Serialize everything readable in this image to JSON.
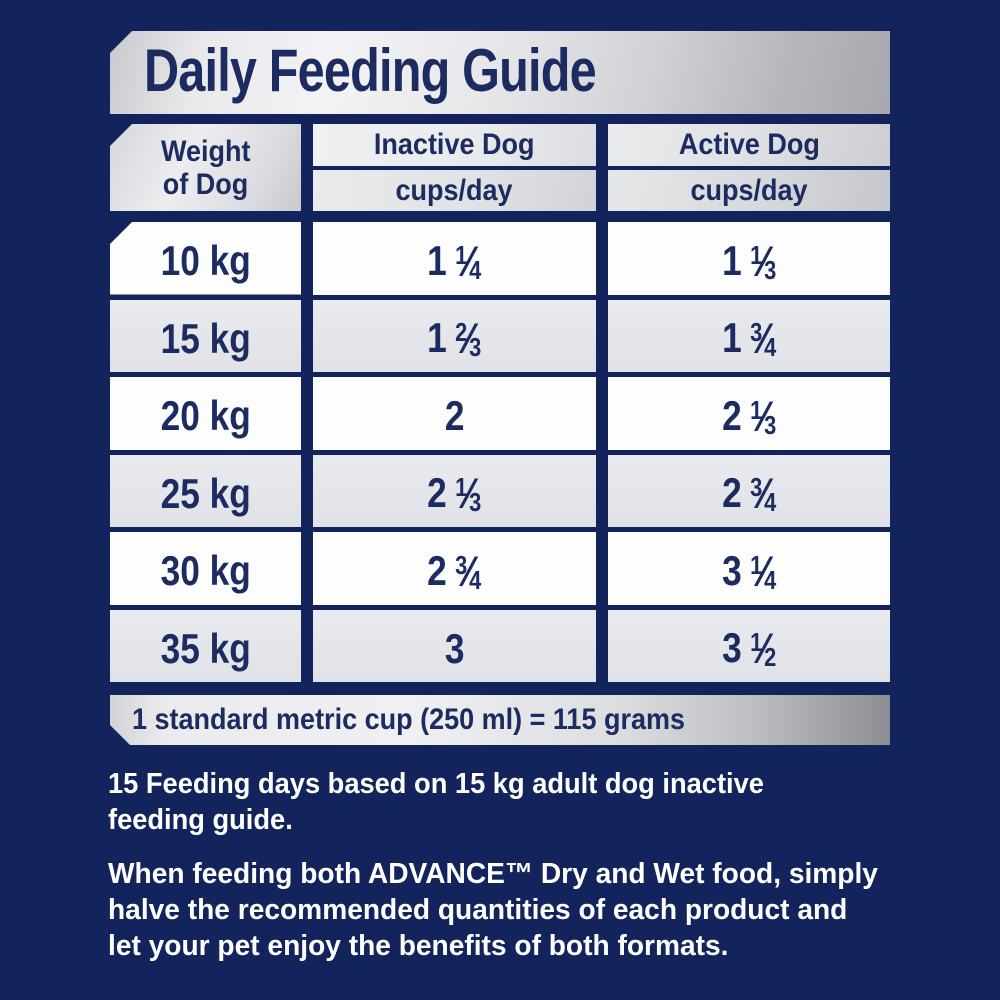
{
  "page": {
    "background_color": "#13235c",
    "text_navy": "#1c2b60",
    "silver": "#d9dadd"
  },
  "title": "Daily Feeding Guide",
  "table": {
    "headers": {
      "weight_line1": "Weight",
      "weight_line2": "of Dog",
      "inactive_label": "Inactive Dog",
      "active_label": "Active Dog",
      "unit_label": "cups/day"
    },
    "rows": [
      {
        "weight": "10 kg",
        "inactive": {
          "whole": "1",
          "num": "1",
          "den": "4"
        },
        "active": {
          "whole": "1",
          "num": "1",
          "den": "3"
        }
      },
      {
        "weight": "15 kg",
        "inactive": {
          "whole": "1",
          "num": "2",
          "den": "3"
        },
        "active": {
          "whole": "1",
          "num": "3",
          "den": "4"
        }
      },
      {
        "weight": "20 kg",
        "inactive": {
          "whole": "2"
        },
        "active": {
          "whole": "2",
          "num": "1",
          "den": "3"
        }
      },
      {
        "weight": "25 kg",
        "inactive": {
          "whole": "2",
          "num": "1",
          "den": "3"
        },
        "active": {
          "whole": "2",
          "num": "3",
          "den": "4"
        }
      },
      {
        "weight": "30 kg",
        "inactive": {
          "whole": "2",
          "num": "3",
          "den": "4"
        },
        "active": {
          "whole": "3",
          "num": "1",
          "den": "4"
        }
      },
      {
        "weight": "35 kg",
        "inactive": {
          "whole": "3"
        },
        "active": {
          "whole": "3",
          "num": "1",
          "den": "2"
        }
      }
    ]
  },
  "footnote": "1 standard metric cup (250 ml) = 115 grams",
  "notes": [
    "15 Feeding days based on 15 kg adult dog inactive\nfeeding guide.",
    "When feeding both ADVANCE™ Dry and Wet food, simply\nhalve the recommended quantities of each product and\nlet your pet enjoy the benefits of both formats."
  ]
}
